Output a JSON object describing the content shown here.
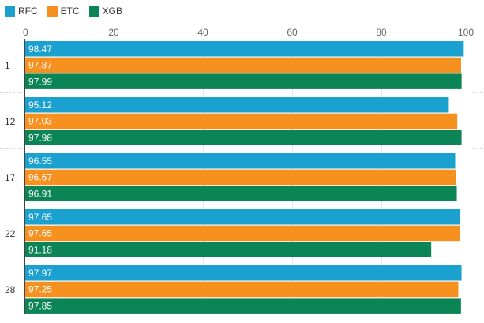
{
  "chart_data": {
    "type": "bar",
    "orientation": "horizontal",
    "categories": [
      "1",
      "12",
      "17",
      "22",
      "28"
    ],
    "series": [
      {
        "name": "RFC",
        "color": "#1aa1d0",
        "values": [
          98.47,
          95.12,
          96.55,
          97.65,
          97.97
        ]
      },
      {
        "name": "ETC",
        "color": "#f6901e",
        "values": [
          97.87,
          97.03,
          96.67,
          97.65,
          97.25
        ]
      },
      {
        "name": "XGB",
        "color": "#0b8456",
        "values": [
          97.99,
          97.98,
          96.91,
          91.18,
          97.85
        ]
      }
    ],
    "xlim": [
      0,
      100
    ],
    "xticks": [
      0,
      20,
      40,
      60,
      80,
      100
    ],
    "title": "",
    "xlabel": "",
    "ylabel": "",
    "grid": true,
    "legend_position": "top-left"
  }
}
